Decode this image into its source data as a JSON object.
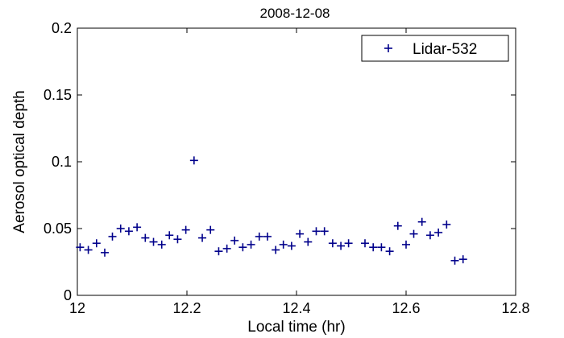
{
  "chart_data": {
    "type": "scatter",
    "title": "2008-12-08",
    "xlabel": "Local time (hr)",
    "ylabel": "Aerosol optical depth",
    "xlim": [
      12,
      12.8
    ],
    "ylim": [
      0,
      0.2
    ],
    "xticks": [
      12,
      12.2,
      12.4,
      12.6,
      12.8
    ],
    "xtick_labels": [
      "12",
      "12.2",
      "12.4",
      "12.6",
      "12.8"
    ],
    "yticks": [
      0,
      0.05,
      0.1,
      0.15,
      0.2
    ],
    "ytick_labels": [
      "0",
      "0.05",
      "0.1",
      "0.15",
      "0.2"
    ],
    "grid": false,
    "legend_position": "top-right",
    "series": [
      {
        "name": "Lidar-532",
        "marker": "+",
        "color": "#00008B",
        "points": [
          [
            12.005,
            0.036
          ],
          [
            12.02,
            0.034
          ],
          [
            12.035,
            0.039
          ],
          [
            12.05,
            0.032
          ],
          [
            12.064,
            0.044
          ],
          [
            12.079,
            0.05
          ],
          [
            12.094,
            0.048
          ],
          [
            12.109,
            0.051
          ],
          [
            12.124,
            0.043
          ],
          [
            12.139,
            0.04
          ],
          [
            12.154,
            0.038
          ],
          [
            12.168,
            0.045
          ],
          [
            12.183,
            0.042
          ],
          [
            12.198,
            0.049
          ],
          [
            12.213,
            0.101
          ],
          [
            12.228,
            0.043
          ],
          [
            12.243,
            0.049
          ],
          [
            12.258,
            0.033
          ],
          [
            12.273,
            0.035
          ],
          [
            12.287,
            0.041
          ],
          [
            12.302,
            0.036
          ],
          [
            12.317,
            0.038
          ],
          [
            12.332,
            0.044
          ],
          [
            12.347,
            0.044
          ],
          [
            12.362,
            0.034
          ],
          [
            12.376,
            0.038
          ],
          [
            12.391,
            0.037
          ],
          [
            12.406,
            0.046
          ],
          [
            12.421,
            0.04
          ],
          [
            12.436,
            0.048
          ],
          [
            12.451,
            0.048
          ],
          [
            12.466,
            0.039
          ],
          [
            12.481,
            0.037
          ],
          [
            12.495,
            0.039
          ],
          [
            12.525,
            0.039
          ],
          [
            12.54,
            0.036
          ],
          [
            12.555,
            0.036
          ],
          [
            12.57,
            0.033
          ],
          [
            12.585,
            0.052
          ],
          [
            12.6,
            0.038
          ],
          [
            12.614,
            0.046
          ],
          [
            12.629,
            0.055
          ],
          [
            12.644,
            0.045
          ],
          [
            12.659,
            0.047
          ],
          [
            12.674,
            0.053
          ],
          [
            12.689,
            0.026
          ],
          [
            12.704,
            0.027
          ]
        ]
      }
    ]
  }
}
